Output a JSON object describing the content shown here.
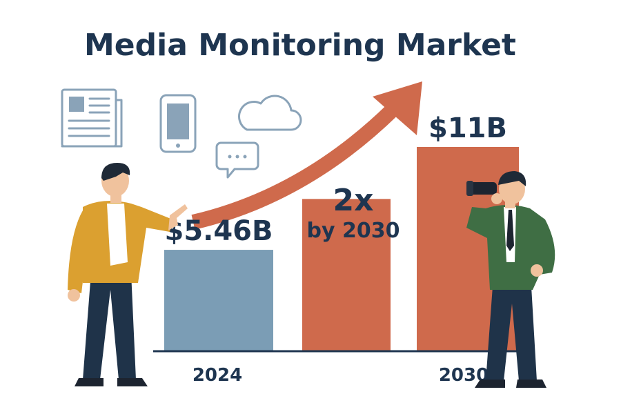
{
  "chart_data": {
    "type": "bar",
    "title": "Media Monitoring Market",
    "categories": [
      "2024",
      "",
      "2030"
    ],
    "values": [
      5.46,
      8.2,
      11
    ],
    "data_labels": [
      "$5.46B",
      "",
      "$11B"
    ],
    "annotation": {
      "main": "2x",
      "sub": "by 2030"
    },
    "bar_colors": [
      "#7b9db5",
      "#cf6a4c",
      "#cf6a4c"
    ],
    "ylim": [
      0,
      11
    ],
    "grid": false,
    "legend": "none"
  },
  "colors": {
    "title": "#1e3550",
    "arrow": "#cf6a4c",
    "icon_stroke": "#8aa3b8",
    "axis": "#1e3550"
  },
  "icons": [
    "newspaper-icon",
    "smartphone-icon",
    "cloud-icon",
    "chat-bubble-icon",
    "trend-arrow-icon"
  ],
  "illustrations": [
    "man-pointing",
    "man-with-binoculars"
  ]
}
